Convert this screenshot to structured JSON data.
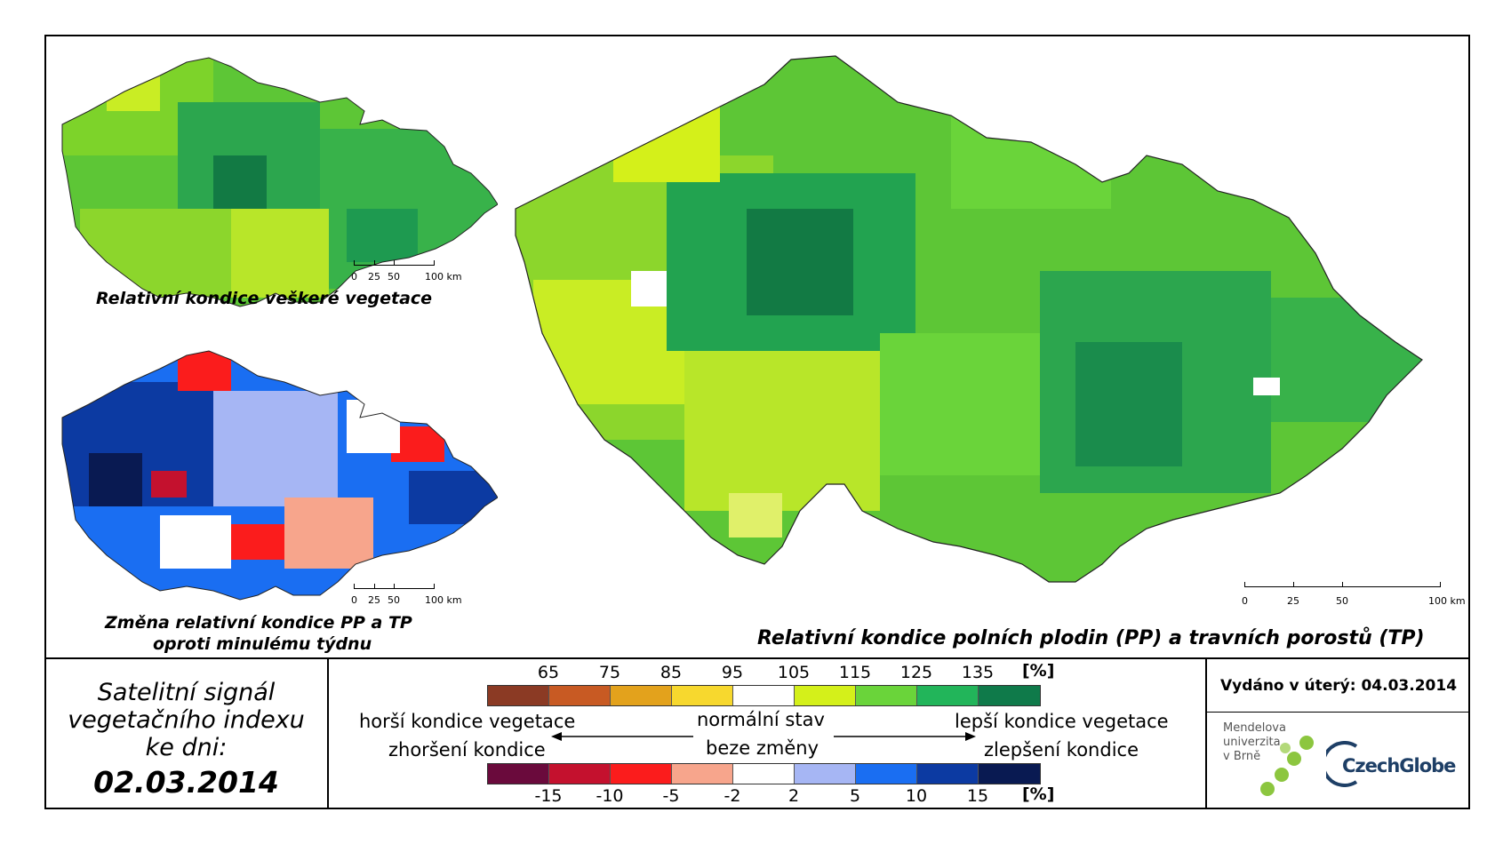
{
  "maps": {
    "top_left": {
      "title": "Relativní kondice veškeré vegetace"
    },
    "bottom_left": {
      "title_line1": "Změna relativní kondice PP a TP",
      "title_line2": "oproti minulému týdnu"
    },
    "main": {
      "title": "Relativní kondice polních plodin (PP) a travních porostů (TP)"
    }
  },
  "scalebar": {
    "labels": [
      "0",
      "25",
      "50",
      "100 km"
    ]
  },
  "date_panel": {
    "line1": "Satelitní signál",
    "line2": "vegetačního indexu",
    "line3": "ke dni:",
    "date": "02.03.2014"
  },
  "legend": {
    "condition": {
      "ticks": [
        "65",
        "75",
        "85",
        "95",
        "105",
        "115",
        "125",
        "135"
      ],
      "unit": "[%]",
      "colors": [
        "#8b3a24",
        "#c85a23",
        "#e3a21c",
        "#f7d82e",
        "#ffffff",
        "#d4f01a",
        "#6ad43a",
        "#22b55a",
        "#0f7a4a"
      ]
    },
    "change": {
      "ticks": [
        "-15",
        "-10",
        "-5",
        "-2",
        "2",
        "5",
        "10",
        "15"
      ],
      "unit": "[%]",
      "colors": [
        "#6a0a3c",
        "#c4112e",
        "#fb1c1c",
        "#f7a58c",
        "#ffffff",
        "#a6b6f4",
        "#1a6ef2",
        "#0c3aa2",
        "#091a52"
      ]
    },
    "worse_condition": "horší kondice vegetace",
    "worsening": "zhoršení kondice",
    "normal_state": "normální stav",
    "no_change": "beze změny",
    "better_condition": "lepší kondice vegetace",
    "improvement": "zlepšení kondice"
  },
  "issued": "Vydáno v úterý: 04.03.2014",
  "logos": {
    "mendel_line1": "Mendelova",
    "mendel_line2": "univerzita",
    "mendel_line3": "v Brně",
    "czechglobe": "CzechGlobe"
  }
}
